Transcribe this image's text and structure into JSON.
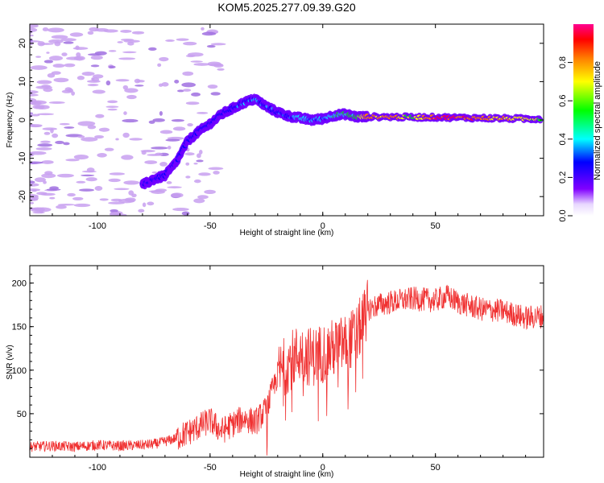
{
  "title": "KOM5.2025.277.09.39.G20",
  "colors": {
    "snr_line": "#f03232",
    "scatter_noise": "#c8a0f0",
    "scatter_noise_dark": "#a070e0",
    "axis": "#000000"
  },
  "chart_data": [
    {
      "type": "heatmap",
      "name": "spectrogram",
      "xlabel": "Height of straight line (km)",
      "ylabel": "Frequency (Hz)",
      "xlim": [
        -130,
        98
      ],
      "ylim": [
        -25,
        25
      ],
      "xticks": [
        -100,
        -50,
        0,
        50
      ],
      "yticks": [
        -20,
        -10,
        0,
        10,
        20
      ],
      "colorbar": {
        "label": "Normalized spectral amplitude",
        "range": [
          0,
          1
        ],
        "ticks": [
          "0.0",
          "0.2",
          "0.4",
          "0.6",
          "0.8"
        ],
        "tick_values": [
          0.0,
          0.2,
          0.4,
          0.6,
          0.8
        ],
        "colormap": [
          "#ffffff",
          "#c8a0f0",
          "#7000ff",
          "#0000ff",
          "#00ffff",
          "#00ff00",
          "#ffff00",
          "#ff8000",
          "#ff0040",
          "#ff00ff"
        ]
      },
      "signal_track": [
        {
          "x": -80,
          "freq": -17,
          "amp": 0.22
        },
        {
          "x": -75,
          "freq": -15.5,
          "amp": 0.25
        },
        {
          "x": -70,
          "freq": -14.5,
          "amp": 0.3
        },
        {
          "x": -65,
          "freq": -11,
          "amp": 0.2
        },
        {
          "x": -60,
          "freq": -5.5,
          "amp": 0.28
        },
        {
          "x": -55,
          "freq": -3,
          "amp": 0.25
        },
        {
          "x": -50,
          "freq": -1,
          "amp": 0.28
        },
        {
          "x": -45,
          "freq": 1.5,
          "amp": 0.3
        },
        {
          "x": -40,
          "freq": 3,
          "amp": 0.3
        },
        {
          "x": -35,
          "freq": 4.5,
          "amp": 0.32
        },
        {
          "x": -30,
          "freq": 5.5,
          "amp": 0.35
        },
        {
          "x": -25,
          "freq": 3.5,
          "amp": 0.3
        },
        {
          "x": -20,
          "freq": 2,
          "amp": 0.3
        },
        {
          "x": -15,
          "freq": 1,
          "amp": 0.3
        },
        {
          "x": -10,
          "freq": 0.5,
          "amp": 0.45
        },
        {
          "x": -5,
          "freq": 0,
          "amp": 0.4
        },
        {
          "x": 0,
          "freq": 0.3,
          "amp": 0.35
        },
        {
          "x": 5,
          "freq": 1.2,
          "amp": 0.5
        },
        {
          "x": 10,
          "freq": 1.5,
          "amp": 0.45
        },
        {
          "x": 15,
          "freq": 0.8,
          "amp": 0.55
        },
        {
          "x": 20,
          "freq": 0.8,
          "amp": 0.8
        },
        {
          "x": 30,
          "freq": 0.8,
          "amp": 0.88
        },
        {
          "x": 40,
          "freq": 0.7,
          "amp": 0.6
        },
        {
          "x": 50,
          "freq": 0.7,
          "amp": 0.95
        },
        {
          "x": 60,
          "freq": 0.6,
          "amp": 0.9
        },
        {
          "x": 70,
          "freq": 0.5,
          "amp": 0.92
        },
        {
          "x": 80,
          "freq": 0.4,
          "amp": 0.75
        },
        {
          "x": 90,
          "freq": 0.3,
          "amp": 0.7
        },
        {
          "x": 97,
          "freq": 0.3,
          "amp": 0.65
        }
      ]
    },
    {
      "type": "line",
      "name": "snr",
      "xlabel": "Height of straight line (km)",
      "ylabel": "SNR (v/v)",
      "xlim": [
        -130,
        98
      ],
      "ylim": [
        0,
        220
      ],
      "xticks": [
        -100,
        -50,
        0,
        50
      ],
      "yticks": [
        50,
        100,
        150,
        200
      ],
      "x": [
        -130,
        -120,
        -110,
        -100,
        -90,
        -80,
        -75,
        -70,
        -65,
        -60,
        -55,
        -50,
        -45,
        -40,
        -35,
        -30,
        -25,
        -20,
        -15,
        -10,
        -5,
        0,
        5,
        10,
        15,
        20,
        25,
        30,
        40,
        50,
        55,
        60,
        70,
        80,
        90,
        98
      ],
      "y": [
        12,
        13,
        12,
        14,
        13,
        14,
        15,
        18,
        22,
        28,
        35,
        42,
        30,
        38,
        45,
        40,
        55,
        95,
        110,
        120,
        115,
        120,
        125,
        130,
        140,
        170,
        175,
        178,
        182,
        180,
        185,
        178,
        170,
        168,
        160,
        162
      ]
    }
  ]
}
